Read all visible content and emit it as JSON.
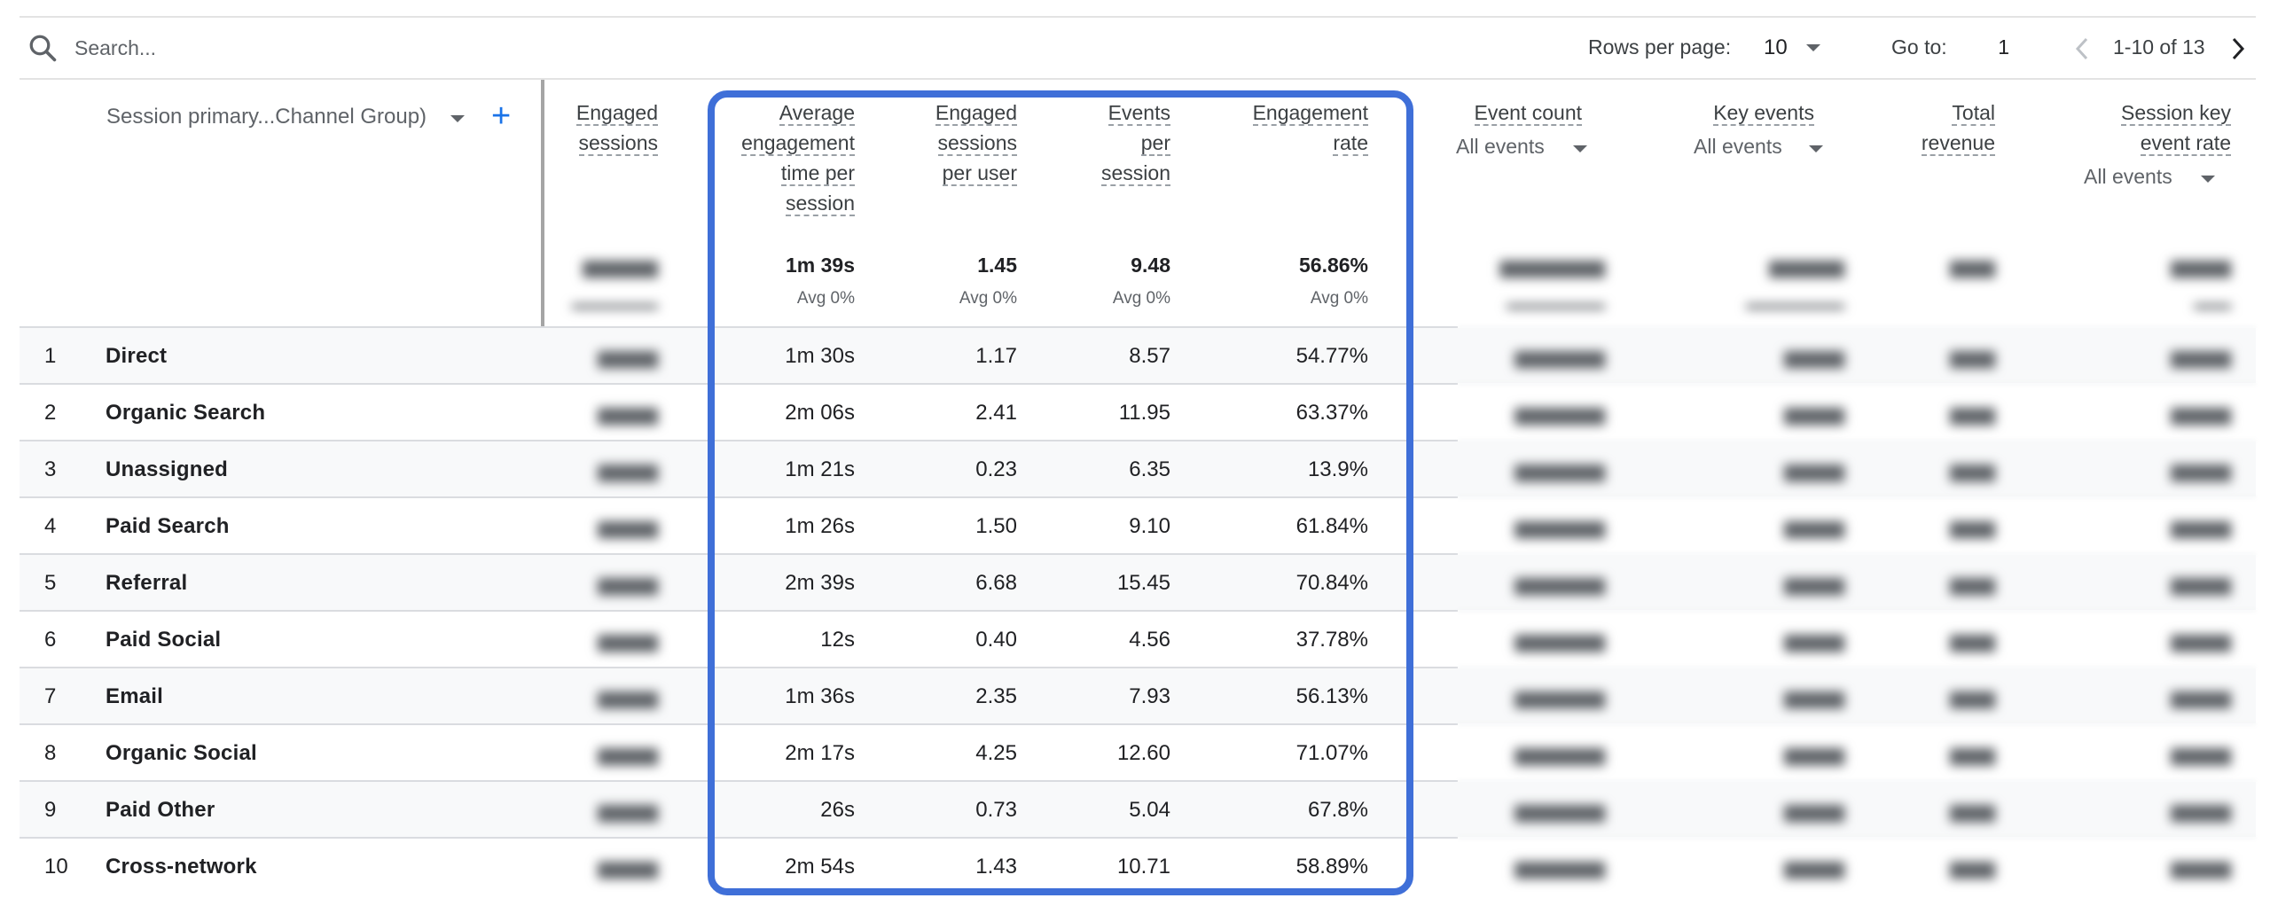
{
  "toolbar": {
    "search_placeholder": "Search...",
    "rows_per_page_label": "Rows per page:",
    "rows_per_page_value": "10",
    "goto_label": "Go to:",
    "goto_value": "1",
    "range_text": "1-10 of 13"
  },
  "table": {
    "dimension_header": "Session primary...Channel Group)",
    "add_dimension_icon": "plus-icon",
    "headers": {
      "engaged_sessions": [
        "Engaged",
        "sessions"
      ],
      "avg_engagement_time": [
        "Average",
        "engagement",
        "time per",
        "session"
      ],
      "engaged_sessions_per_user": [
        "Engaged",
        "sessions",
        "per user"
      ],
      "events_per_session": [
        "Events",
        "per",
        "session"
      ],
      "engagement_rate": [
        "Engagement",
        "rate"
      ],
      "event_count": [
        "Event count"
      ],
      "event_count_filter": "All events",
      "key_events": [
        "Key events"
      ],
      "key_events_filter": "All events",
      "total_revenue": [
        "Total",
        "revenue"
      ],
      "session_key_event_rate": [
        "Session key",
        "event rate"
      ],
      "session_key_event_rate_filter": "All events"
    },
    "totals": {
      "avg_engagement_time": "1m 39s",
      "avg_engagement_time_sub": "Avg 0%",
      "engaged_sessions_per_user": "1.45",
      "engaged_sessions_per_user_sub": "Avg 0%",
      "events_per_session": "9.48",
      "events_per_session_sub": "Avg 0%",
      "engagement_rate": "56.86%",
      "engagement_rate_sub": "Avg 0%"
    },
    "rows": [
      {
        "idx": "1",
        "channel": "Direct",
        "avg_time": "1m 30s",
        "per_user": "1.17",
        "events_per_session": "8.57",
        "rate": "54.77%"
      },
      {
        "idx": "2",
        "channel": "Organic Search",
        "avg_time": "2m 06s",
        "per_user": "2.41",
        "events_per_session": "11.95",
        "rate": "63.37%"
      },
      {
        "idx": "3",
        "channel": "Unassigned",
        "avg_time": "1m 21s",
        "per_user": "0.23",
        "events_per_session": "6.35",
        "rate": "13.9%"
      },
      {
        "idx": "4",
        "channel": "Paid Search",
        "avg_time": "1m 26s",
        "per_user": "1.50",
        "events_per_session": "9.10",
        "rate": "61.84%"
      },
      {
        "idx": "5",
        "channel": "Referral",
        "avg_time": "2m 39s",
        "per_user": "6.68",
        "events_per_session": "15.45",
        "rate": "70.84%"
      },
      {
        "idx": "6",
        "channel": "Paid Social",
        "avg_time": "12s",
        "per_user": "0.40",
        "events_per_session": "4.56",
        "rate": "37.78%"
      },
      {
        "idx": "7",
        "channel": "Email",
        "avg_time": "1m 36s",
        "per_user": "2.35",
        "events_per_session": "7.93",
        "rate": "56.13%"
      },
      {
        "idx": "8",
        "channel": "Organic Social",
        "avg_time": "2m 17s",
        "per_user": "4.25",
        "events_per_session": "12.60",
        "rate": "71.07%"
      },
      {
        "idx": "9",
        "channel": "Paid Other",
        "avg_time": "26s",
        "per_user": "0.73",
        "events_per_session": "5.04",
        "rate": "67.8%"
      },
      {
        "idx": "10",
        "channel": "Cross-network",
        "avg_time": "2m 54s",
        "per_user": "1.43",
        "events_per_session": "10.71",
        "rate": "58.89%"
      }
    ]
  },
  "colors": {
    "highlight_border": "#3f6fd8",
    "accent": "#1a73e8",
    "row_alt": "#f8f9fa"
  }
}
